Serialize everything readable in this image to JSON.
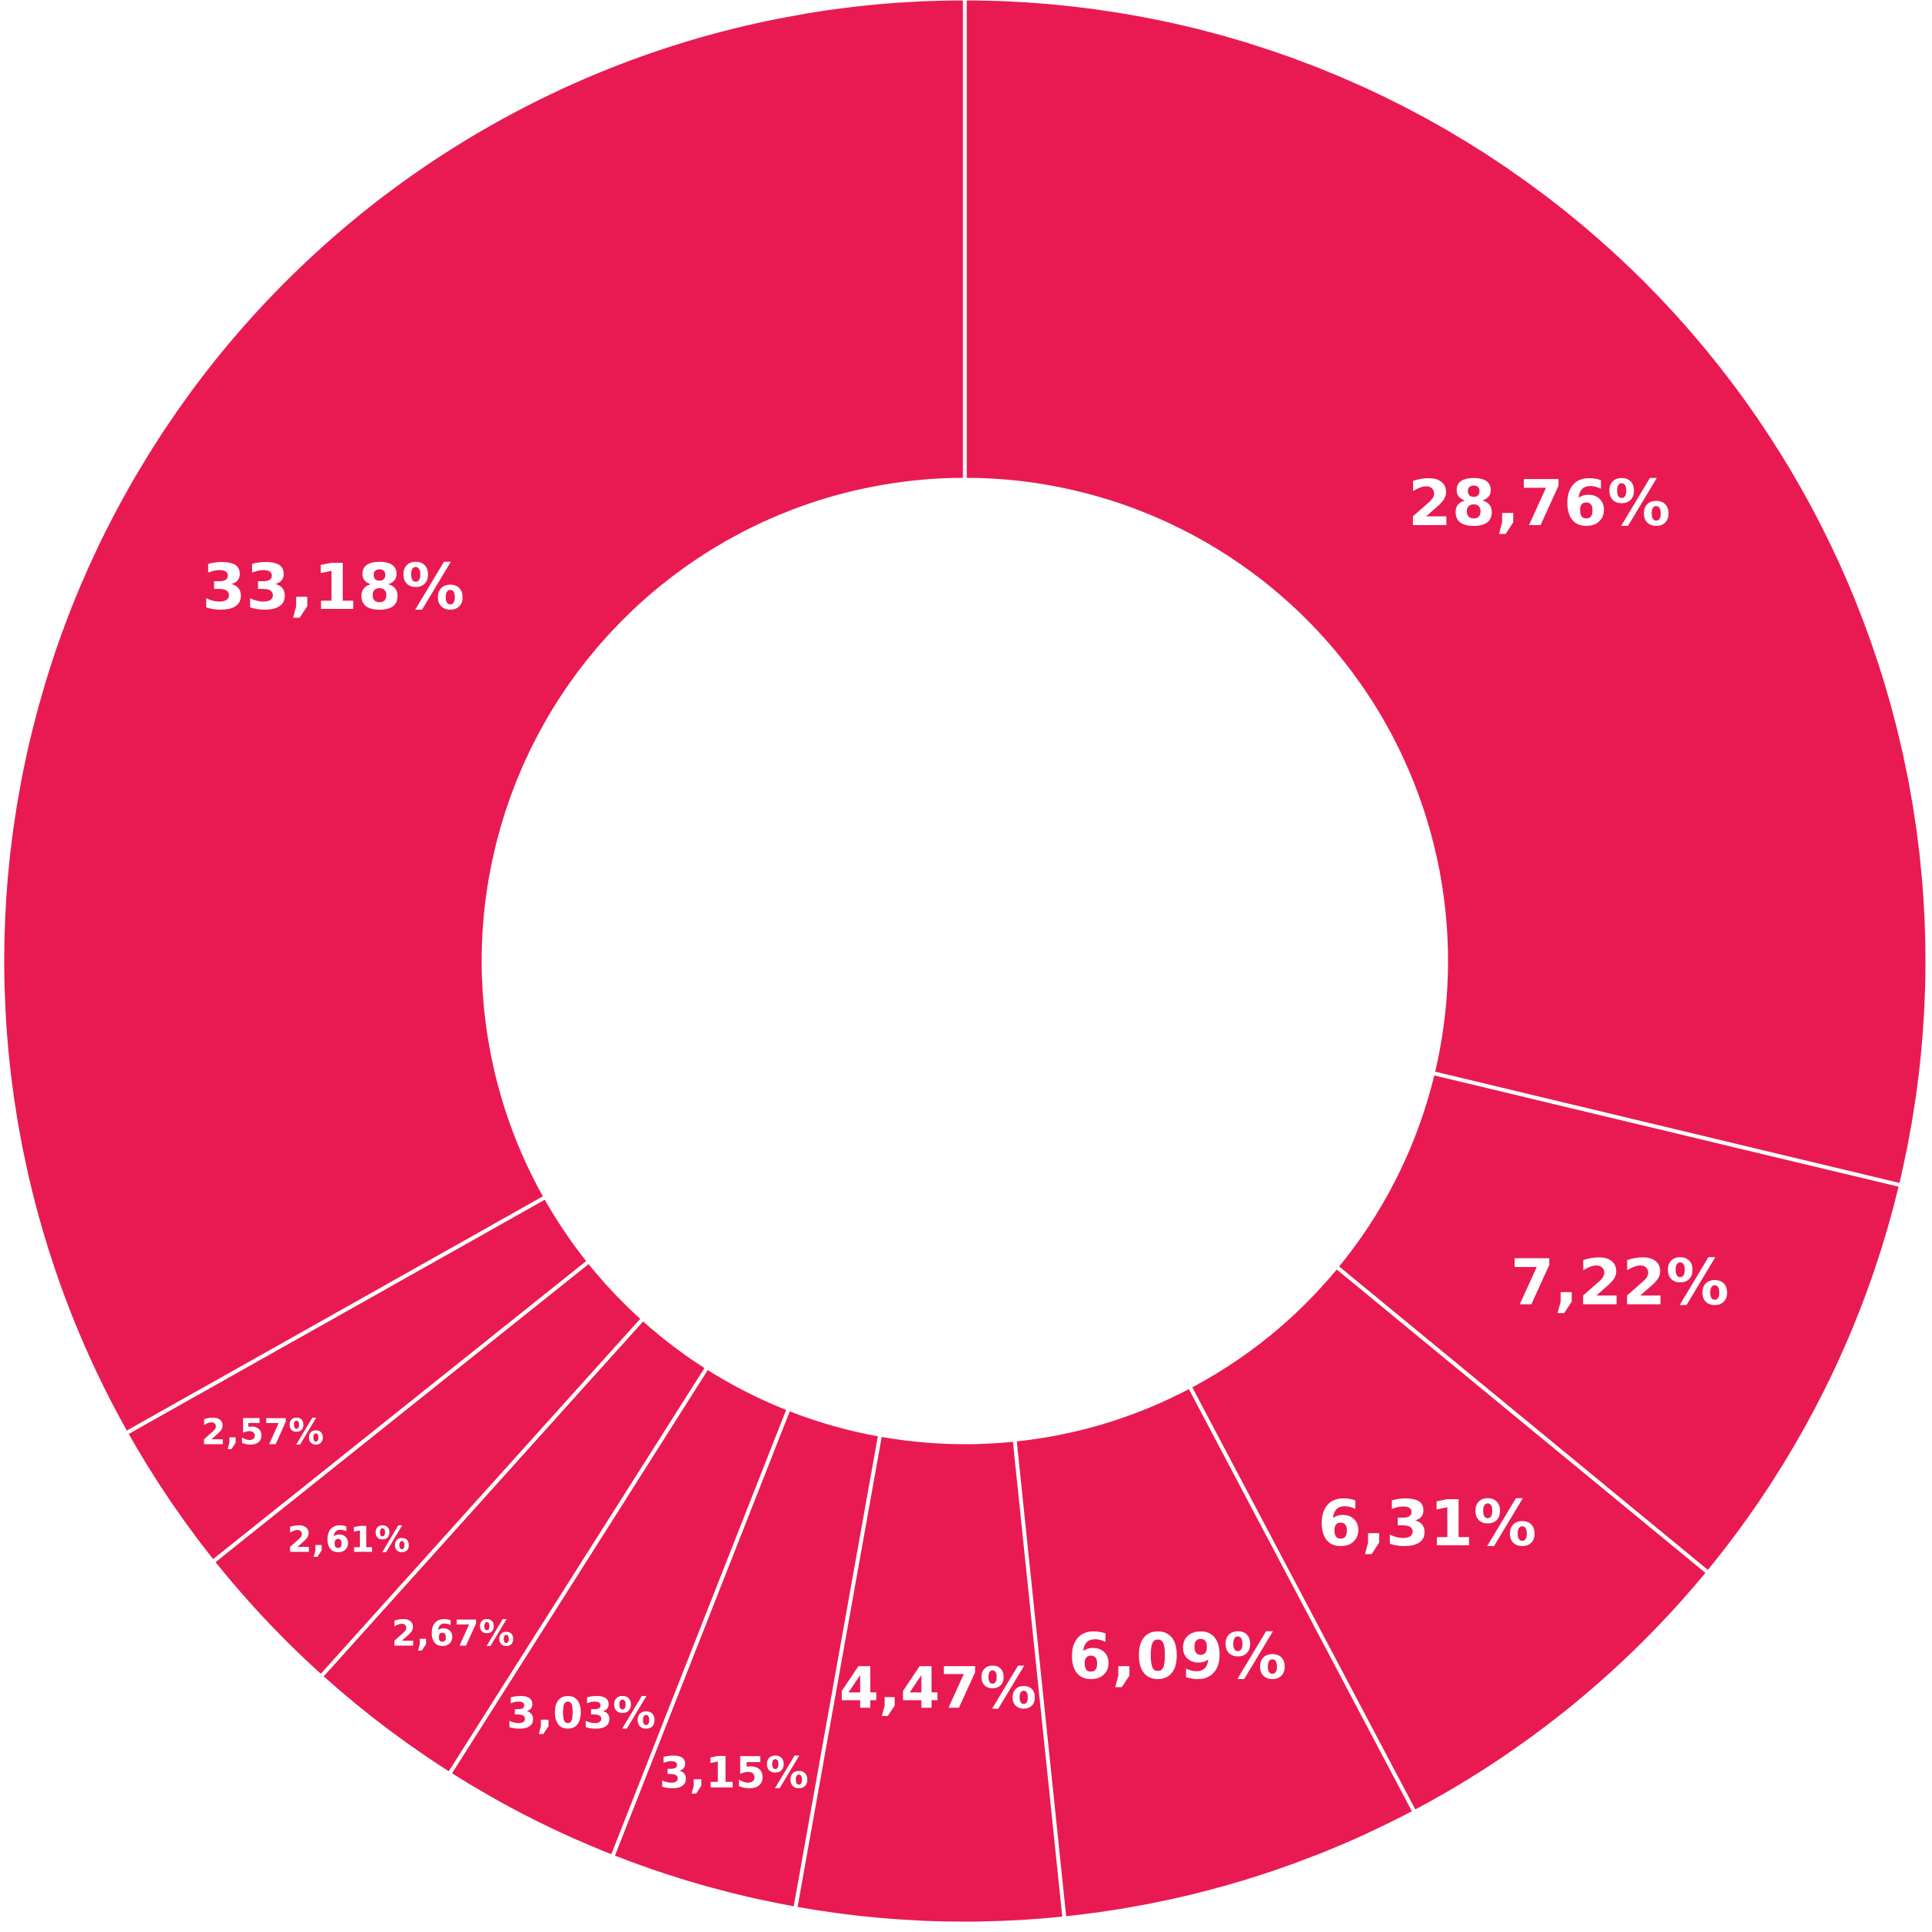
{
  "chart_data": {
    "type": "pie",
    "values": [
      28.76,
      7.22,
      6.31,
      6.09,
      4.47,
      3.15,
      3.03,
      2.67,
      2.61,
      2.57,
      33.18
    ],
    "value_labels": [
      "28,76%",
      "7,22%",
      "6,31%",
      "6,09%",
      "4,47%",
      "3,15%",
      "3,03%",
      "2,67%",
      "2,61%",
      "2,57%",
      "33,18%"
    ],
    "color": "#e91a52"
  }
}
